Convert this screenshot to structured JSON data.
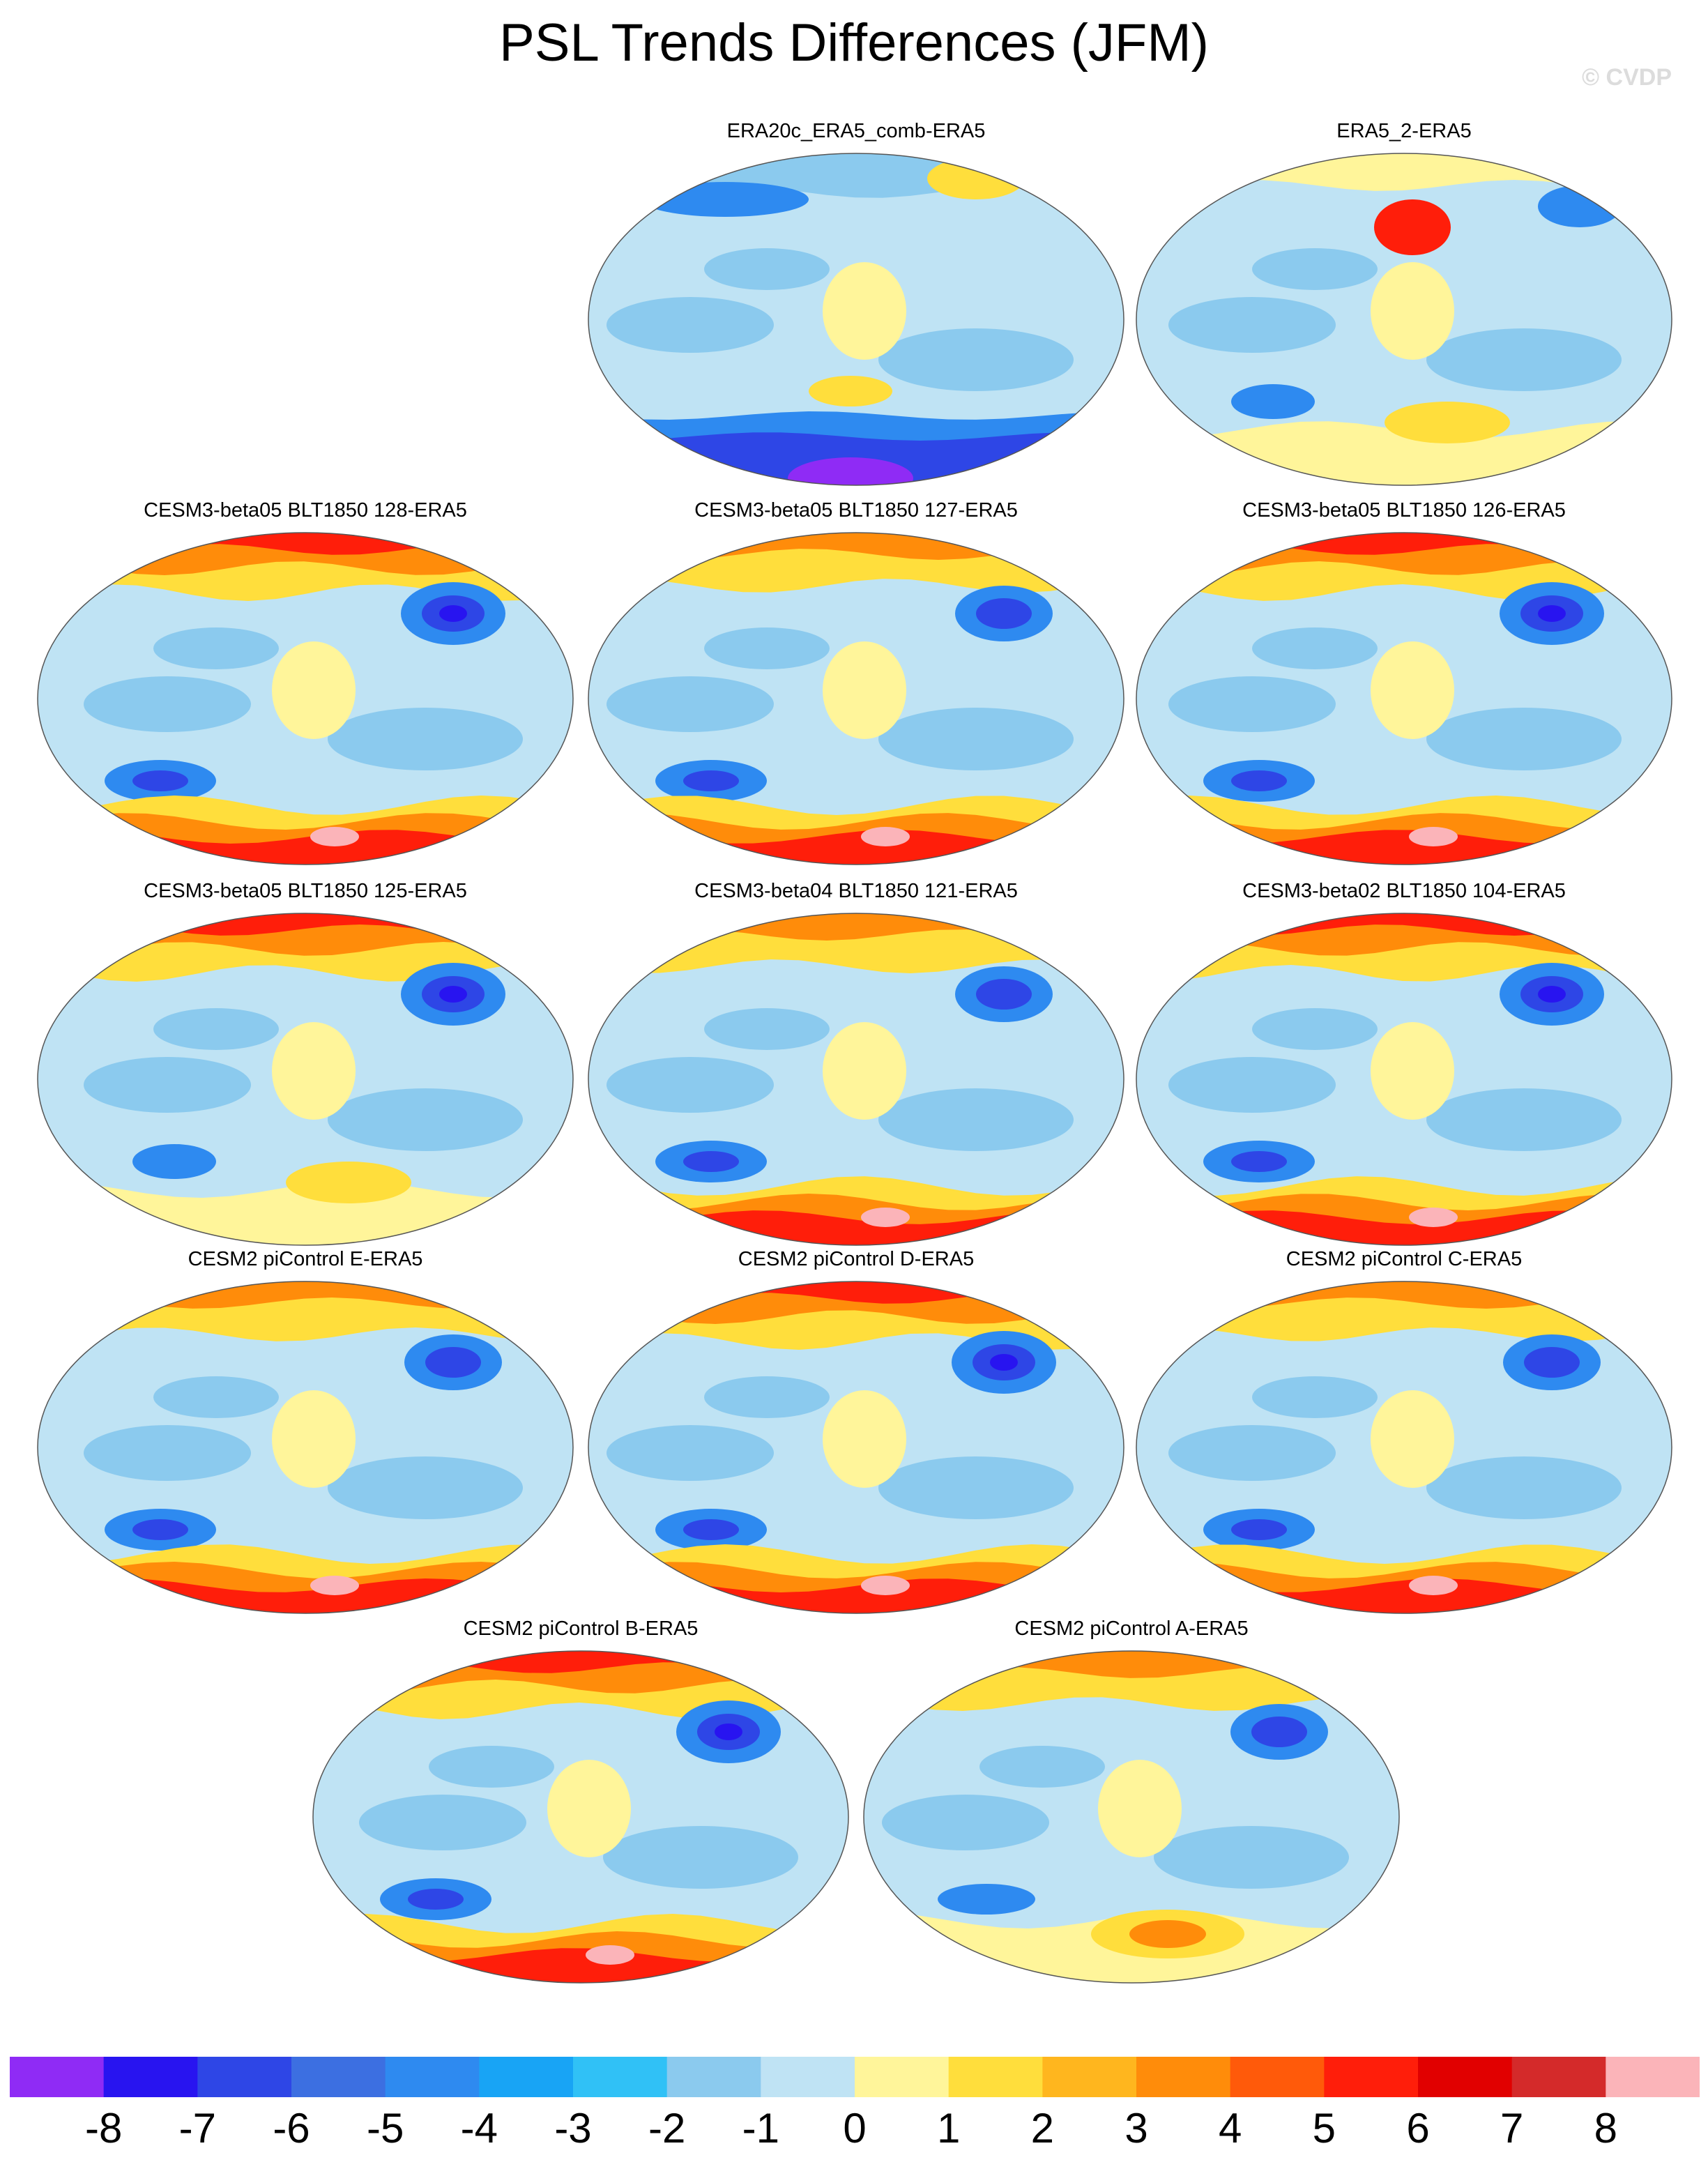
{
  "page": {
    "title": "PSL Trends Differences (JFM)",
    "watermark": "© CVDP"
  },
  "panels": [
    {
      "title": "ERA20c_ERA5_comb-ERA5",
      "north": "weak-neg",
      "south": "strong-neg"
    },
    {
      "title": "ERA5_2-ERA5",
      "north": "mixed-pos",
      "south": "weak-pos"
    },
    {
      "title": "CESM3-beta05 BLT1850 128-ERA5",
      "north": "strong-pos",
      "south": "strong-pos"
    },
    {
      "title": "CESM3-beta05 BLT1850 127-ERA5",
      "north": "pos",
      "south": "strong-pos"
    },
    {
      "title": "CESM3-beta05 BLT1850 126-ERA5",
      "north": "strong-pos",
      "south": "strong-pos"
    },
    {
      "title": "CESM3-beta05 BLT1850 125-ERA5",
      "north": "strong-pos",
      "south": "weak-pos"
    },
    {
      "title": "CESM3-beta04 BLT1850 121-ERA5",
      "north": "pos",
      "south": "strong-pos"
    },
    {
      "title": "CESM3-beta02 BLT1850 104-ERA5",
      "north": "strong-pos",
      "south": "strong-pos"
    },
    {
      "title": "CESM2 piControl E-ERA5",
      "north": "pos",
      "south": "strong-pos"
    },
    {
      "title": "CESM2 piControl D-ERA5",
      "north": "strong-pos",
      "south": "strong-pos"
    },
    {
      "title": "CESM2 piControl C-ERA5",
      "north": "pos",
      "south": "strong-pos"
    },
    {
      "title": "CESM2 piControl B-ERA5",
      "north": "strong-pos",
      "south": "strong-pos"
    },
    {
      "title": "CESM2 piControl A-ERA5",
      "north": "pos",
      "south": "pos"
    }
  ],
  "colorbar": {
    "colors": [
      "#8F2BF5",
      "#2814F0",
      "#2E46E6",
      "#3C6FE1",
      "#2E8AF0",
      "#18A4F5",
      "#30C1F6",
      "#8BCAEE",
      "#BFE3F4",
      "#FFF59A",
      "#FFDE3C",
      "#FFB61E",
      "#FF8C0A",
      "#FF5A0A",
      "#FF1E0A",
      "#E10000",
      "#D42A2A",
      "#FBB4B9"
    ],
    "labels": [
      "-8",
      "-7",
      "-6",
      "-5",
      "-4",
      "-3",
      "-2",
      "-1",
      "0",
      "1",
      "2",
      "3",
      "4",
      "5",
      "6",
      "7",
      "8"
    ]
  },
  "palette": {
    "neg4": "#2814F0",
    "neg3": "#2E46E6",
    "neg2": "#2E8AF0",
    "neg1": "#8BCAEE",
    "zero": "#BFE3F4",
    "pos1": "#FFF59A",
    "pos2": "#FFDE3C",
    "pos3": "#FF8C0A",
    "pos4": "#FF1E0A",
    "pos5": "#FBB4B9"
  }
}
